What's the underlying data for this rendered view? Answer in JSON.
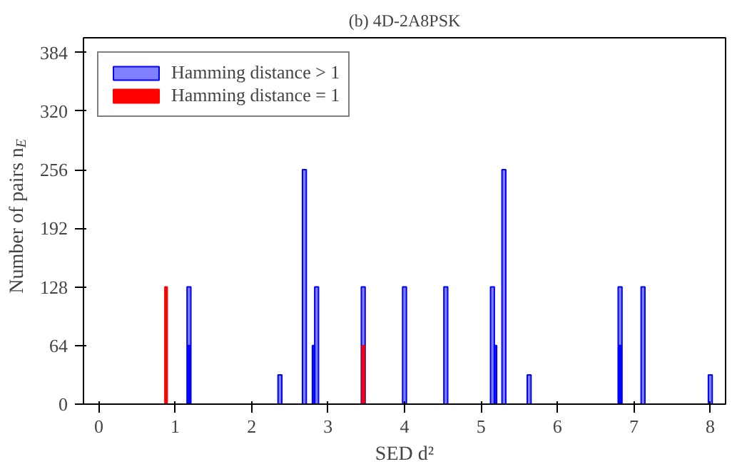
{
  "chart_data": {
    "type": "bar",
    "title": "(b) 4D-2A8PSK",
    "xlabel": "SED d²",
    "ylabel": "Number of pairs n$_{E}$",
    "series": [
      {
        "name": "Hamming distance > 1",
        "color": "#0000ff",
        "x": [
          1.18,
          2.37,
          2.69,
          2.85,
          3.46,
          4.0,
          4.54,
          5.15,
          5.3,
          5.63,
          6.82,
          7.12,
          8.0
        ],
        "values": [
          128,
          32,
          256,
          128,
          128,
          128,
          128,
          128,
          256,
          32,
          128,
          128,
          32
        ]
      },
      {
        "color": "#0000ff",
        "x": [
          1.18,
          2.81,
          5.19,
          6.82
        ],
        "values": [
          64,
          64,
          64,
          64
        ]
      },
      {
        "name": "Hamming distance = 1",
        "color": "#ff0000",
        "x": [
          0.88,
          3.46
        ],
        "values": [
          128,
          64
        ]
      }
    ],
    "xlim": [
      -0.2,
      8.2
    ],
    "ylim": [
      0,
      400
    ],
    "xticks": [
      0,
      1,
      2,
      3,
      4,
      5,
      6,
      7,
      8
    ],
    "yticks": [
      0,
      64,
      128,
      192,
      256,
      320,
      384
    ],
    "grid": false,
    "legend": "top left"
  }
}
